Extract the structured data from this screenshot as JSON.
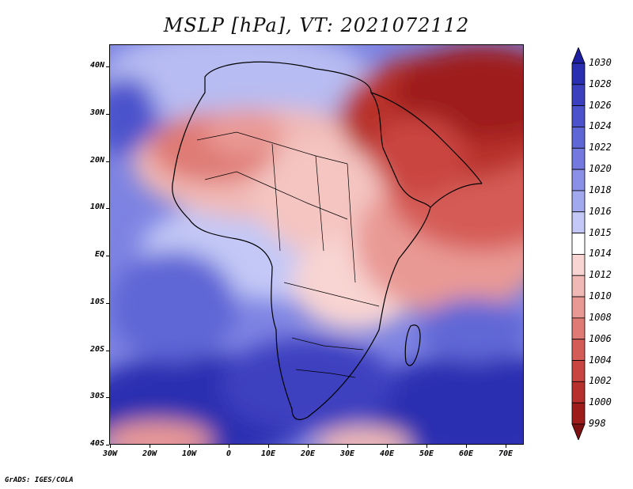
{
  "title": "MSLP [hPa], VT: 2021072112",
  "credit": "GrADS: IGES/COLA",
  "map": {
    "lon_range": [
      -30,
      75
    ],
    "lat_range": [
      -40,
      45
    ],
    "lat_labels": [
      "40N",
      "30N",
      "20N",
      "10N",
      "EQ",
      "10S",
      "20S",
      "30S",
      "40S"
    ],
    "lon_labels": [
      "30W",
      "20W",
      "10W",
      "0",
      "10E",
      "20E",
      "30E",
      "40E",
      "50E",
      "60E",
      "70E"
    ],
    "features": [
      {
        "name": "low-sahara",
        "lon": 5,
        "lat": 23
      },
      {
        "name": "low-arabia",
        "lon": 50,
        "lat": 25
      },
      {
        "name": "low-middle-east",
        "lon": 60,
        "lat": 35
      },
      {
        "name": "high-south-atlantic",
        "lon": 0,
        "lat": -30
      },
      {
        "name": "high-south-indian",
        "lon": 65,
        "lat": -30
      },
      {
        "name": "high-north-atlantic",
        "lon": -30,
        "lat": 30
      }
    ]
  },
  "colorbar": {
    "levels": [
      "1030",
      "1028",
      "1026",
      "1024",
      "1022",
      "1020",
      "1018",
      "1016",
      "1015",
      "1014",
      "1012",
      "1010",
      "1008",
      "1006",
      "1004",
      "1002",
      "1000",
      "998"
    ],
    "colors": [
      "#1d1ea0",
      "#2a2eb0",
      "#3c40bf",
      "#4c52cc",
      "#5f66d6",
      "#7379df",
      "#8a90e6",
      "#a2a8ee",
      "#c3c8f6",
      "#ffffff",
      "#f8d4d2",
      "#f1b9b5",
      "#e99994",
      "#df7a74",
      "#d55c56",
      "#c94540",
      "#b8302c",
      "#9e1c1a",
      "#7d1010"
    ]
  }
}
